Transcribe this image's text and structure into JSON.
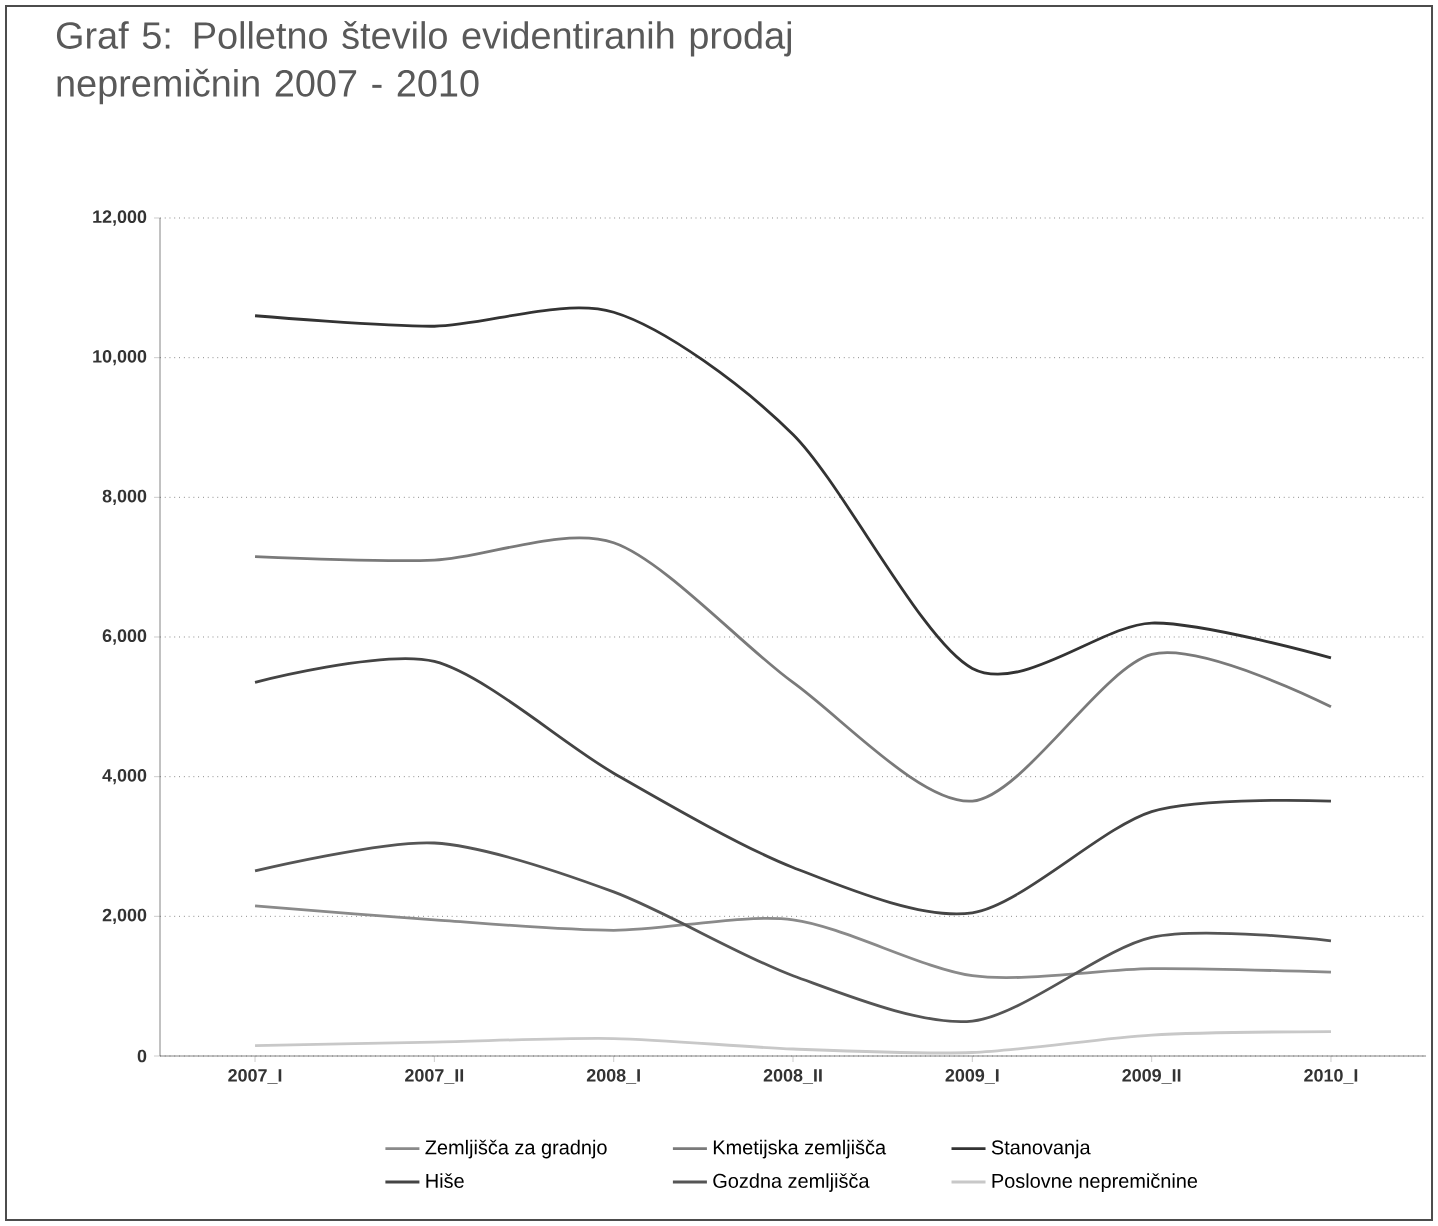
{
  "chart_data": {
    "type": "line",
    "title": "Graf 5: Polletno število evidentiranih prodaj nepremičnin 2007 - 2010",
    "categories": [
      "2007_I",
      "2007_II",
      "2008_I",
      "2008_II",
      "2009_I",
      "2009_II",
      "2010_I"
    ],
    "ylim": [
      0,
      12000
    ],
    "yticks": [
      {
        "value": 0,
        "label": "0"
      },
      {
        "value": 2000,
        "label": "2,000"
      },
      {
        "value": 4000,
        "label": "4,000"
      },
      {
        "value": 6000,
        "label": "6,000"
      },
      {
        "value": 8000,
        "label": "8,000"
      },
      {
        "value": 10000,
        "label": "10,000"
      },
      {
        "value": 12000,
        "label": "12,000"
      }
    ],
    "grid": "y",
    "legend": "bottom",
    "line_style": "solid",
    "series": [
      {
        "name": "Zemljišča za gradnjo",
        "color": "#8a8a8a",
        "values": [
          2150,
          1950,
          1800,
          1950,
          1150,
          1250,
          1200
        ]
      },
      {
        "name": "Kmetijska zemljišča",
        "color": "#7a7a7a",
        "values": [
          7150,
          7100,
          7350,
          5350,
          3650,
          5750,
          5000
        ]
      },
      {
        "name": "Stanovanja",
        "color": "#333333",
        "values": [
          10600,
          10450,
          10650,
          8900,
          5550,
          6200,
          5700
        ]
      },
      {
        "name": "Hiše",
        "color": "#444444",
        "values": [
          5350,
          5650,
          4050,
          2700,
          2050,
          3500,
          3650
        ]
      },
      {
        "name": "Gozdna zemljišča",
        "color": "#555555",
        "values": [
          2650,
          3050,
          2350,
          1150,
          500,
          1700,
          1650
        ]
      },
      {
        "name": "Poslovne nepremičnine",
        "color": "#c8c8c8",
        "values": [
          150,
          200,
          250,
          100,
          50,
          300,
          350
        ]
      }
    ]
  }
}
